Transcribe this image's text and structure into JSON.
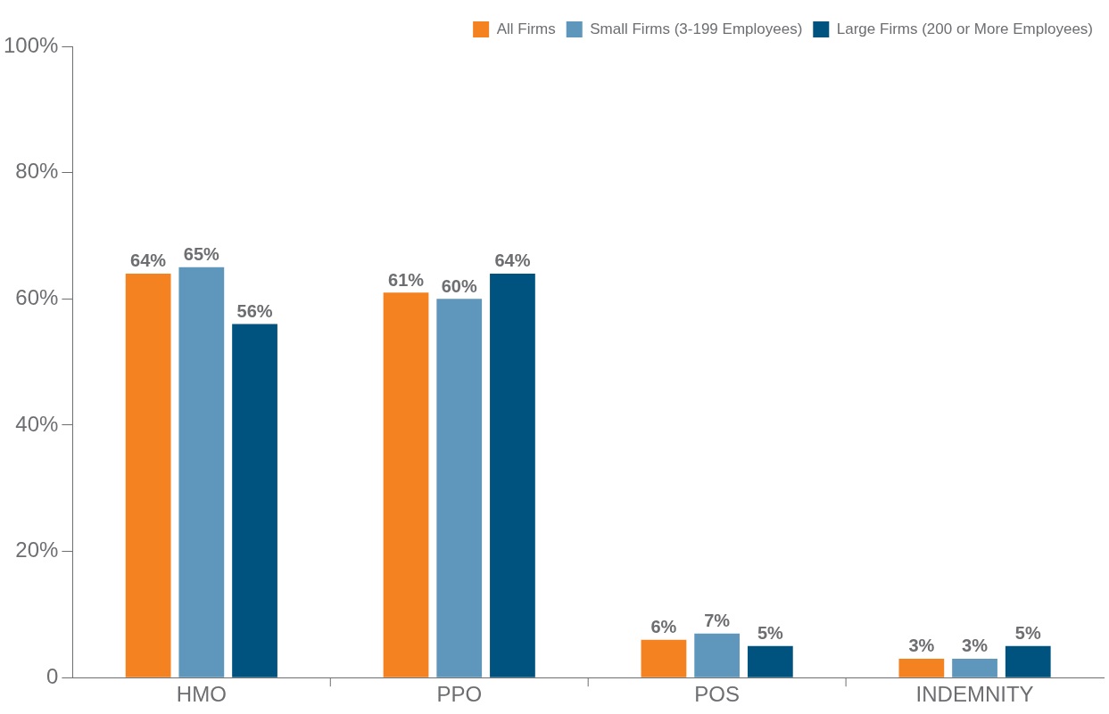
{
  "chart_data": {
    "type": "bar",
    "categories": [
      "HMO",
      "PPO",
      "POS",
      "INDEMNITY"
    ],
    "series": [
      {
        "name": "All Firms",
        "color": "#f58220",
        "values": [
          64,
          61,
          6,
          3
        ],
        "value_labels": [
          "64%",
          "61%",
          "6%",
          "3%"
        ]
      },
      {
        "name": "Small Firms (3-199 Employees)",
        "color": "#5e97bb",
        "values": [
          65,
          60,
          7,
          3
        ],
        "value_labels": [
          "65%",
          "60%",
          "7%",
          "3%"
        ]
      },
      {
        "name": "Large Firms (200 or More Employees)",
        "color": "#00527f",
        "values": [
          56,
          64,
          5,
          5
        ],
        "value_labels": [
          "56%",
          "64%",
          "5%",
          "5%"
        ]
      }
    ],
    "ylim": [
      0,
      100
    ],
    "yticks": [
      {
        "value": 0,
        "label": "0"
      },
      {
        "value": 20,
        "label": "20%"
      },
      {
        "value": 40,
        "label": "40%"
      },
      {
        "value": 60,
        "label": "60%"
      },
      {
        "value": 80,
        "label": "80%"
      },
      {
        "value": 100,
        "label": "100%"
      }
    ],
    "grid": false,
    "legend": "top right"
  }
}
